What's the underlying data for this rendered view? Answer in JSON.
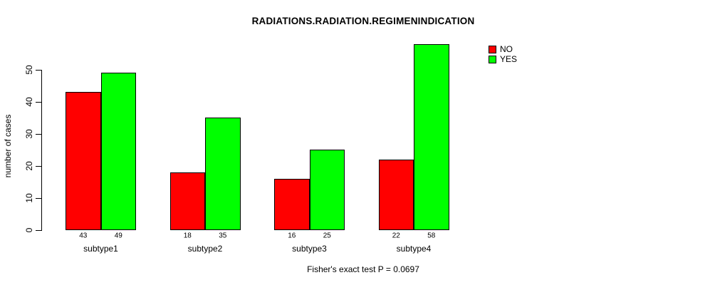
{
  "chart_data": {
    "type": "bar",
    "grouped": true,
    "title": "RADIATIONS.RADIATION.REGIMENINDICATION",
    "ylabel": "number of cases",
    "xlabel": "",
    "caption": "Fisher's exact test P = 0.0697",
    "categories": [
      "subtype1",
      "subtype2",
      "subtype3",
      "subtype4"
    ],
    "series": [
      {
        "name": "NO",
        "color": "#ff0000",
        "values": [
          43,
          18,
          16,
          22
        ]
      },
      {
        "name": "YES",
        "color": "#00ff00",
        "values": [
          49,
          35,
          25,
          58
        ]
      }
    ],
    "y_ticks": [
      0,
      10,
      20,
      30,
      40,
      50
    ],
    "ylim": [
      0,
      58
    ],
    "grid": false,
    "show_value_labels": true,
    "legend_position": "top-right",
    "bar_border_color": "#000000",
    "background_color": "#ffffff"
  }
}
